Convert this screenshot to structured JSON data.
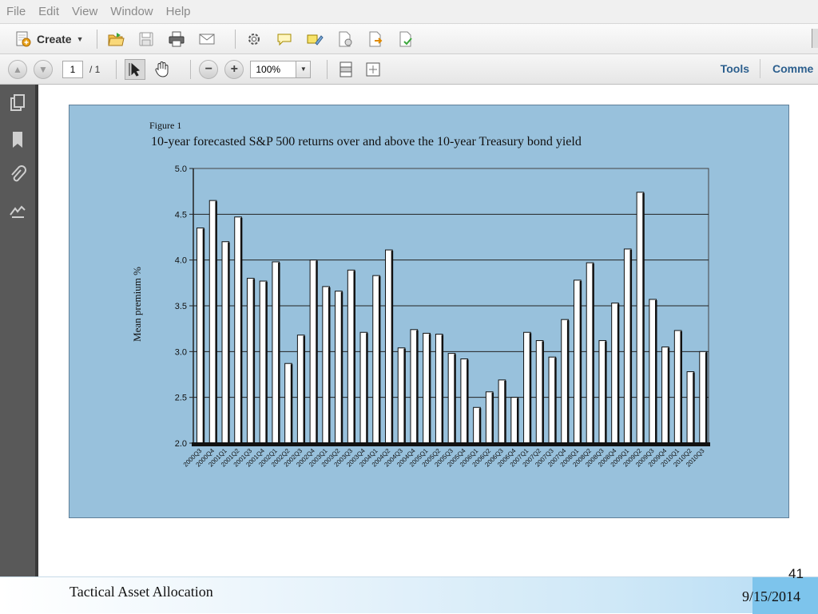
{
  "menu": [
    "File",
    "Edit",
    "View",
    "Window",
    "Help"
  ],
  "toolbar": {
    "create_label": "Create",
    "icons": [
      "open-icon",
      "save-icon",
      "print-icon",
      "email-icon",
      "settings-icon",
      "comment-icon",
      "highlight-icon",
      "combine-icon",
      "export-icon",
      "sign-icon"
    ]
  },
  "nav": {
    "page_current": "1",
    "page_total": "/ 1",
    "zoom": "100%",
    "tools_label": "Tools",
    "comment_label": "Comme"
  },
  "figure": {
    "label": "Figure 1",
    "title": "10-year forecasted S&P 500 returns over and above the 10-year Treasury bond yield"
  },
  "chart_data": {
    "type": "bar",
    "title": "10-year forecasted S&P 500 returns over and above the 10-year Treasury bond yield",
    "xlabel": "",
    "ylabel": "Mean premium  %",
    "ylim": [
      2.0,
      5.0
    ],
    "yticks": [
      "5.0",
      "4.5",
      "4.0",
      "3.5",
      "3.0",
      "2.5",
      "2.0"
    ],
    "grid": true,
    "categories": [
      "2000Q3",
      "2000Q4",
      "2001Q1",
      "2001Q2",
      "2001Q3",
      "2001Q4",
      "2002Q1",
      "2002Q2",
      "2002Q3",
      "2002Q4",
      "2003Q1",
      "2003Q2",
      "2003Q3",
      "2003Q4",
      "2004Q1",
      "2004Q2",
      "2004Q3",
      "2004Q4",
      "2005Q1",
      "2005Q2",
      "2005Q3",
      "2005Q4",
      "2006Q1",
      "2006Q2",
      "2006Q3",
      "2006Q4",
      "2007Q1",
      "2007Q2",
      "2007Q3",
      "2007Q4",
      "2008Q1",
      "2008Q2",
      "2008Q3",
      "2008Q4",
      "2009Q1",
      "2009Q2",
      "2009Q3",
      "2009Q4",
      "2010Q1",
      "2010Q2",
      "2010Q3"
    ],
    "values": [
      4.35,
      4.65,
      4.2,
      4.47,
      3.8,
      3.77,
      3.98,
      2.87,
      3.18,
      4.0,
      3.71,
      3.66,
      3.89,
      3.21,
      3.83,
      4.11,
      3.04,
      3.24,
      3.2,
      3.19,
      2.98,
      2.92,
      2.39,
      2.56,
      2.69,
      2.5,
      3.21,
      3.12,
      2.94,
      3.35,
      3.78,
      3.97,
      3.12,
      3.53,
      4.12,
      4.74,
      3.57,
      3.05,
      3.23,
      2.78,
      3.0
    ]
  },
  "footer": {
    "title": "Tactical Asset Allocation",
    "date": "9/15/2014",
    "slide_number": "41"
  }
}
